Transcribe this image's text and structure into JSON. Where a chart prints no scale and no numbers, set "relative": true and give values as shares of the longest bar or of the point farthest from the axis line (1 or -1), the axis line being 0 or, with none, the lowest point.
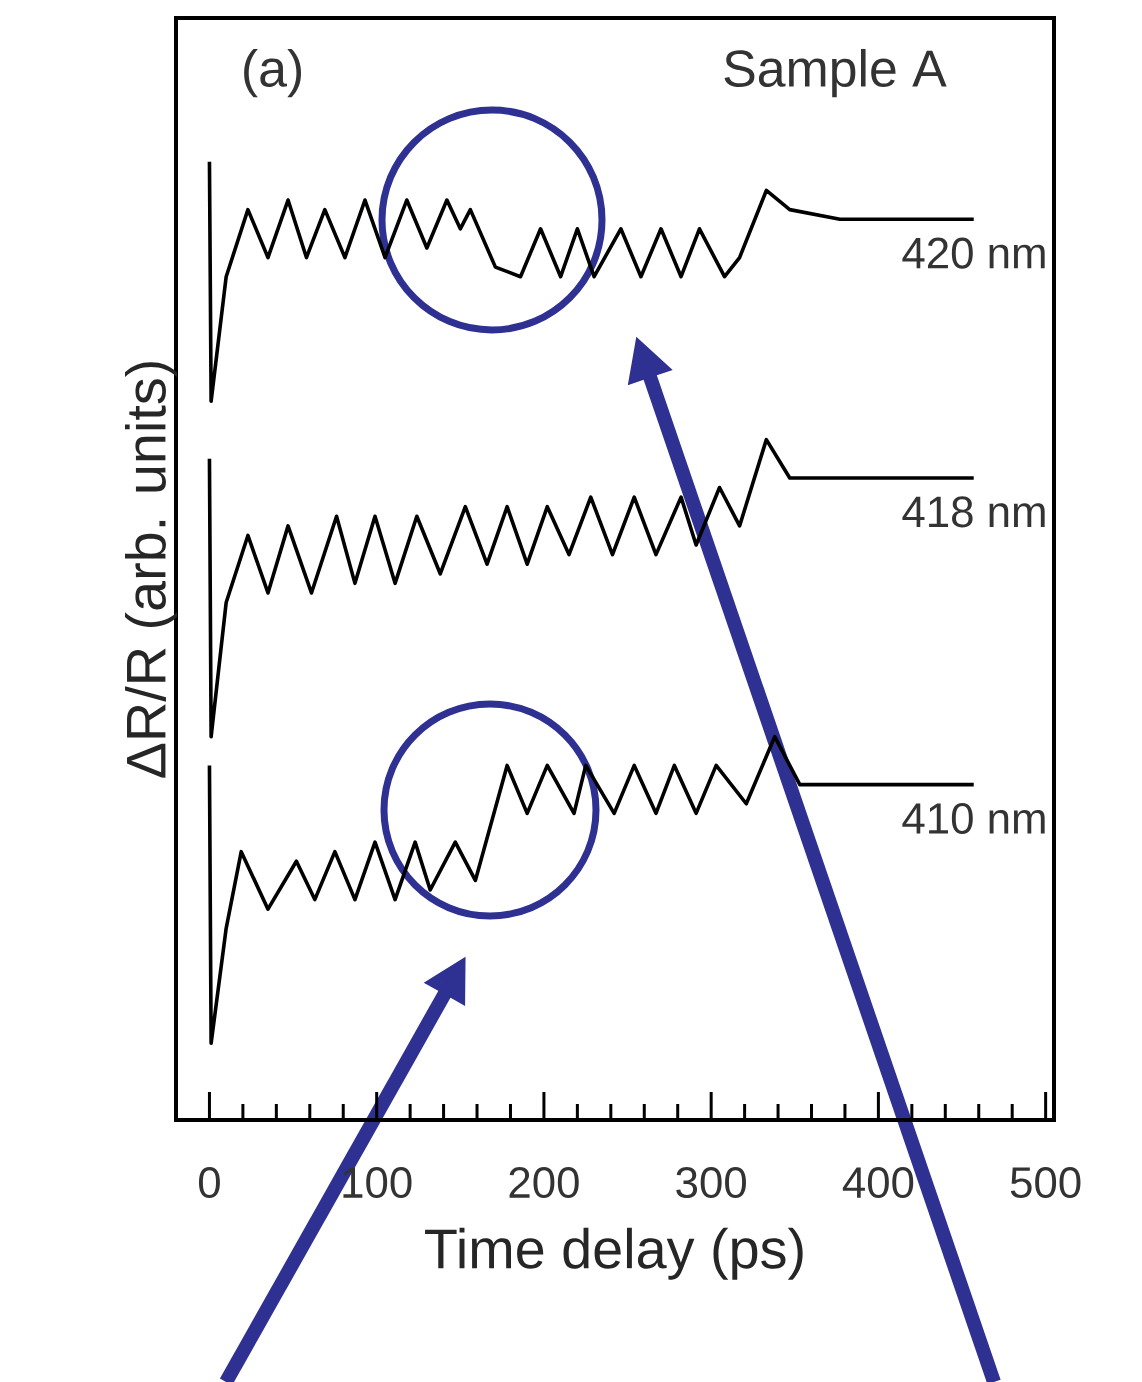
{
  "chart_data": {
    "type": "line",
    "relative": true,
    "xlabel": "Time delay (ps)",
    "ylabel": "ΔR/R (arb. units)",
    "tick_labels": "x",
    "annotations": [
      "(a)",
      "Sample A"
    ],
    "xlim": [
      -20,
      505
    ],
    "xticks": [
      0,
      {
        "value": 20,
        "label": null
      },
      {
        "value": 40,
        "label": null
      },
      {
        "value": 60,
        "label": null
      },
      {
        "value": 80,
        "label": null
      },
      100,
      {
        "value": 120,
        "label": null
      },
      {
        "value": 140,
        "label": null
      },
      {
        "value": 160,
        "label": null
      },
      {
        "value": 180,
        "label": null
      },
      200,
      {
        "value": 220,
        "label": null
      },
      {
        "value": 240,
        "label": null
      },
      {
        "value": 260,
        "label": null
      },
      {
        "value": 280,
        "label": null
      },
      300,
      {
        "value": 320,
        "label": null
      },
      {
        "value": 340,
        "label": null
      },
      {
        "value": 360,
        "label": null
      },
      {
        "value": 380,
        "label": null
      },
      400,
      {
        "value": 420,
        "label": null
      },
      {
        "value": 440,
        "label": null
      },
      {
        "value": 460,
        "label": null
      },
      {
        "value": 480,
        "label": null
      },
      500
    ],
    "series": [
      {
        "name": "420 nm",
        "color": "#000000",
        "x": [
          0,
          1,
          10,
          23,
          35,
          47,
          58,
          69,
          81,
          93,
          105,
          118,
          130,
          142,
          150,
          156,
          171,
          186,
          198,
          210,
          220,
          230,
          246,
          258,
          270,
          282,
          293,
          308,
          317,
          333,
          347,
          377,
          457
        ],
        "values": [
          1.0,
          0.75,
          0.88,
          0.95,
          0.9,
          0.96,
          0.9,
          0.95,
          0.9,
          0.96,
          0.9,
          0.96,
          0.91,
          0.96,
          0.93,
          0.95,
          0.89,
          0.88,
          0.93,
          0.88,
          0.93,
          0.88,
          0.93,
          0.88,
          0.93,
          0.88,
          0.93,
          0.88,
          0.9,
          0.97,
          0.95,
          0.94,
          0.94
        ]
      },
      {
        "name": "418 nm",
        "color": "#000000",
        "x": [
          0,
          1,
          10,
          23,
          35,
          47,
          61,
          76,
          87,
          99,
          111,
          124,
          138,
          153,
          166,
          178,
          190,
          202,
          215,
          228,
          241,
          254,
          267,
          282,
          291,
          305,
          317,
          333,
          347,
          377,
          457
        ],
        "values": [
          0.69,
          0.4,
          0.54,
          0.61,
          0.55,
          0.62,
          0.55,
          0.63,
          0.56,
          0.63,
          0.56,
          0.63,
          0.57,
          0.64,
          0.58,
          0.64,
          0.58,
          0.64,
          0.59,
          0.65,
          0.59,
          0.65,
          0.59,
          0.65,
          0.6,
          0.66,
          0.62,
          0.71,
          0.67,
          0.67,
          0.67
        ]
      },
      {
        "name": "410 nm",
        "color": "#000000",
        "x": [
          0,
          1,
          10,
          19,
          35,
          52,
          63,
          75,
          87,
          99,
          111,
          123,
          132,
          147,
          159,
          178,
          190,
          202,
          218,
          225,
          242,
          254,
          267,
          278,
          291,
          303,
          321,
          338,
          353,
          377,
          457
        ],
        "values": [
          0.37,
          0.08,
          0.2,
          0.28,
          0.22,
          0.27,
          0.23,
          0.28,
          0.23,
          0.29,
          0.23,
          0.29,
          0.24,
          0.29,
          0.25,
          0.37,
          0.32,
          0.37,
          0.32,
          0.37,
          0.32,
          0.37,
          0.32,
          0.37,
          0.32,
          0.37,
          0.33,
          0.4,
          0.35,
          0.35,
          0.35
        ]
      }
    ]
  }
}
